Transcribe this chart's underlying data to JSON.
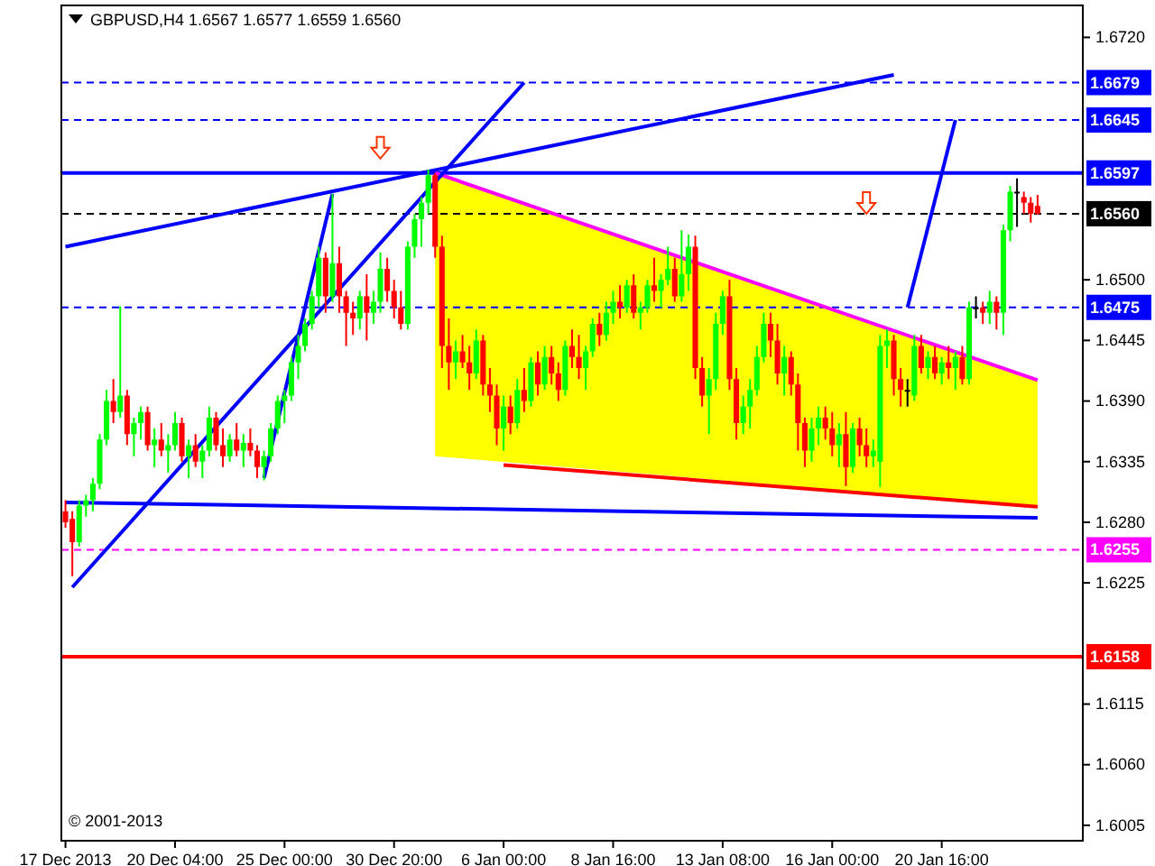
{
  "chart_data": {
    "type": "candlestick",
    "title": "GBPUSD,H4  1.6567 1.6577 1.6559 1.6560",
    "categories": [
      "17 Dec 2013",
      null,
      null,
      null,
      null,
      null,
      null,
      null,
      null,
      null,
      null,
      null,
      null,
      null,
      null,
      null,
      "20 Dec 04:00",
      null,
      null,
      null,
      null,
      null,
      null,
      null,
      null,
      null,
      null,
      null,
      null,
      null,
      null,
      null,
      "25 Dec 00:00",
      null,
      null,
      null,
      null,
      null,
      null,
      null,
      null,
      null,
      null,
      null,
      null,
      null,
      null,
      null,
      "30 Dec 20:00",
      null,
      null,
      null,
      null,
      null,
      null,
      null,
      null,
      null,
      null,
      null,
      null,
      null,
      null,
      null,
      "6 Jan 00:00",
      null,
      null,
      null,
      null,
      null,
      null,
      null,
      null,
      null,
      null,
      null,
      null,
      null,
      null,
      null,
      "8 Jan 16:00",
      null,
      null,
      null,
      null,
      null,
      null,
      null,
      null,
      null,
      null,
      null,
      null,
      null,
      null,
      null,
      "13 Jan 08:00",
      null,
      null,
      null,
      null,
      null,
      null,
      null,
      null,
      null,
      null,
      null,
      null,
      null,
      null,
      null,
      "16 Jan 00:00",
      null,
      null,
      null,
      null,
      null,
      null,
      null,
      null,
      null,
      null,
      null,
      null,
      null,
      null,
      null,
      "20 Jan 16:00",
      null,
      null,
      null,
      null,
      null,
      null,
      null,
      null,
      null,
      null,
      null,
      null,
      null,
      null
    ],
    "ohlc": [
      [
        1.629,
        1.63,
        1.6275,
        1.628
      ],
      [
        1.6283,
        1.629,
        1.6231,
        1.6262
      ],
      [
        1.6262,
        1.63,
        1.6258,
        1.6295
      ],
      [
        1.6295,
        1.6305,
        1.6285,
        1.63
      ],
      [
        1.63,
        1.632,
        1.629,
        1.6315
      ],
      [
        1.6315,
        1.636,
        1.631,
        1.6355
      ],
      [
        1.6355,
        1.64,
        1.635,
        1.639
      ],
      [
        1.639,
        1.641,
        1.637,
        1.638
      ],
      [
        1.638,
        1.6476,
        1.6375,
        1.6395
      ],
      [
        1.6395,
        1.64,
        1.635,
        1.636
      ],
      [
        1.636,
        1.6375,
        1.634,
        1.637
      ],
      [
        1.637,
        1.6385,
        1.6355,
        1.638
      ],
      [
        1.638,
        1.6385,
        1.6345,
        1.635
      ],
      [
        1.635,
        1.6365,
        1.633,
        1.6355
      ],
      [
        1.6355,
        1.637,
        1.634,
        1.6345
      ],
      [
        1.6345,
        1.636,
        1.6325,
        1.635
      ],
      [
        1.635,
        1.638,
        1.6345,
        1.637
      ],
      [
        1.637,
        1.6375,
        1.6335,
        1.634
      ],
      [
        1.634,
        1.6355,
        1.632,
        1.635
      ],
      [
        1.635,
        1.636,
        1.633,
        1.6335
      ],
      [
        1.6335,
        1.635,
        1.632,
        1.6345
      ],
      [
        1.6345,
        1.6385,
        1.634,
        1.6375
      ],
      [
        1.6375,
        1.638,
        1.6345,
        1.635
      ],
      [
        1.635,
        1.6365,
        1.633,
        1.634
      ],
      [
        1.634,
        1.636,
        1.6335,
        1.6355
      ],
      [
        1.6355,
        1.637,
        1.634,
        1.6345
      ],
      [
        1.6345,
        1.636,
        1.633,
        1.6352
      ],
      [
        1.6352,
        1.6365,
        1.634,
        1.6345
      ],
      [
        1.6345,
        1.635,
        1.632,
        1.633
      ],
      [
        1.633,
        1.6345,
        1.6318,
        1.634
      ],
      [
        1.634,
        1.637,
        1.6335,
        1.6365
      ],
      [
        1.6365,
        1.6395,
        1.636,
        1.639
      ],
      [
        1.639,
        1.64,
        1.637,
        1.6395
      ],
      [
        1.6395,
        1.643,
        1.639,
        1.6425
      ],
      [
        1.6425,
        1.645,
        1.641,
        1.644
      ],
      [
        1.644,
        1.6465,
        1.6435,
        1.646
      ],
      [
        1.646,
        1.649,
        1.6455,
        1.6485
      ],
      [
        1.6485,
        1.653,
        1.6475,
        1.652
      ],
      [
        1.652,
        1.6525,
        1.647,
        1.6485
      ],
      [
        1.6485,
        1.6578,
        1.648,
        1.6515
      ],
      [
        1.6515,
        1.653,
        1.647,
        1.6485
      ],
      [
        1.6485,
        1.649,
        1.644,
        1.647
      ],
      [
        1.647,
        1.648,
        1.645,
        1.6465
      ],
      [
        1.6465,
        1.649,
        1.6455,
        1.6485
      ],
      [
        1.6485,
        1.6505,
        1.6445,
        1.647
      ],
      [
        1.647,
        1.649,
        1.646,
        1.648
      ],
      [
        1.648,
        1.6525,
        1.647,
        1.651
      ],
      [
        1.651,
        1.652,
        1.648,
        1.649
      ],
      [
        1.649,
        1.65,
        1.6465,
        1.6475
      ],
      [
        1.6475,
        1.649,
        1.6455,
        1.646
      ],
      [
        1.646,
        1.6535,
        1.6455,
        1.653
      ],
      [
        1.653,
        1.656,
        1.652,
        1.6555
      ],
      [
        1.6555,
        1.6575,
        1.653,
        1.657
      ],
      [
        1.657,
        1.66,
        1.656,
        1.6595
      ],
      [
        1.6595,
        1.6597,
        1.652,
        1.653
      ],
      [
        1.653,
        1.654,
        1.642,
        1.644
      ],
      [
        1.644,
        1.6465,
        1.64,
        1.6425
      ],
      [
        1.6425,
        1.6445,
        1.641,
        1.6435
      ],
      [
        1.6435,
        1.645,
        1.642,
        1.6425
      ],
      [
        1.6425,
        1.644,
        1.64,
        1.6415
      ],
      [
        1.6415,
        1.6455,
        1.641,
        1.6445
      ],
      [
        1.6445,
        1.645,
        1.6395,
        1.6405
      ],
      [
        1.6405,
        1.642,
        1.638,
        1.6395
      ],
      [
        1.6395,
        1.6405,
        1.635,
        1.6365
      ],
      [
        1.6365,
        1.6395,
        1.6345,
        1.6385
      ],
      [
        1.6385,
        1.6395,
        1.636,
        1.637
      ],
      [
        1.637,
        1.641,
        1.6365,
        1.64
      ],
      [
        1.64,
        1.642,
        1.638,
        1.639
      ],
      [
        1.639,
        1.643,
        1.6385,
        1.6425
      ],
      [
        1.6425,
        1.6435,
        1.6395,
        1.6405
      ],
      [
        1.6405,
        1.644,
        1.64,
        1.643
      ],
      [
        1.643,
        1.644,
        1.6405,
        1.6415
      ],
      [
        1.6415,
        1.6425,
        1.639,
        1.64
      ],
      [
        1.64,
        1.6445,
        1.6395,
        1.644
      ],
      [
        1.644,
        1.6455,
        1.642,
        1.643
      ],
      [
        1.643,
        1.645,
        1.641,
        1.642
      ],
      [
        1.642,
        1.644,
        1.64,
        1.6435
      ],
      [
        1.6435,
        1.6465,
        1.643,
        1.646
      ],
      [
        1.646,
        1.647,
        1.644,
        1.645
      ],
      [
        1.645,
        1.648,
        1.6445,
        1.647
      ],
      [
        1.647,
        1.649,
        1.646,
        1.648
      ],
      [
        1.648,
        1.6495,
        1.6465,
        1.6475
      ],
      [
        1.6475,
        1.65,
        1.647,
        1.6495
      ],
      [
        1.6495,
        1.6505,
        1.6465,
        1.647
      ],
      [
        1.647,
        1.648,
        1.6455,
        1.6475
      ],
      [
        1.6475,
        1.65,
        1.647,
        1.6495
      ],
      [
        1.6495,
        1.652,
        1.648,
        1.649
      ],
      [
        1.649,
        1.6505,
        1.6475,
        1.65
      ],
      [
        1.65,
        1.653,
        1.6495,
        1.651
      ],
      [
        1.651,
        1.652,
        1.648,
        1.6485
      ],
      [
        1.6485,
        1.6545,
        1.648,
        1.6505
      ],
      [
        1.6505,
        1.6541,
        1.649,
        1.653
      ],
      [
        1.653,
        1.654,
        1.641,
        1.642
      ],
      [
        1.642,
        1.643,
        1.6385,
        1.6395
      ],
      [
        1.6395,
        1.642,
        1.636,
        1.641
      ],
      [
        1.641,
        1.647,
        1.64,
        1.646
      ],
      [
        1.646,
        1.649,
        1.645,
        1.6485
      ],
      [
        1.6485,
        1.65,
        1.64,
        1.641
      ],
      [
        1.641,
        1.642,
        1.6355,
        1.637
      ],
      [
        1.637,
        1.6395,
        1.636,
        1.6385
      ],
      [
        1.6385,
        1.641,
        1.6365,
        1.64
      ],
      [
        1.64,
        1.644,
        1.6395,
        1.643
      ],
      [
        1.643,
        1.647,
        1.6425,
        1.646
      ],
      [
        1.646,
        1.647,
        1.643,
        1.6445
      ],
      [
        1.6445,
        1.646,
        1.6405,
        1.6415
      ],
      [
        1.6415,
        1.644,
        1.6395,
        1.643
      ],
      [
        1.643,
        1.6435,
        1.6395,
        1.6405
      ],
      [
        1.6405,
        1.6415,
        1.6345,
        1.637
      ],
      [
        1.637,
        1.6375,
        1.633,
        1.6345
      ],
      [
        1.6345,
        1.6375,
        1.6335,
        1.6365
      ],
      [
        1.6365,
        1.6385,
        1.635,
        1.6375
      ],
      [
        1.6375,
        1.6385,
        1.6355,
        1.6365
      ],
      [
        1.6365,
        1.638,
        1.634,
        1.635
      ],
      [
        1.635,
        1.637,
        1.633,
        1.636
      ],
      [
        1.636,
        1.638,
        1.6313,
        1.633
      ],
      [
        1.633,
        1.637,
        1.6325,
        1.6365
      ],
      [
        1.6365,
        1.6375,
        1.634,
        1.635
      ],
      [
        1.635,
        1.6365,
        1.633,
        1.634
      ],
      [
        1.634,
        1.6355,
        1.633,
        1.6345
      ],
      [
        1.6335,
        1.645,
        1.6312,
        1.644
      ],
      [
        1.644,
        1.6455,
        1.642,
        1.6445
      ],
      [
        1.6445,
        1.645,
        1.6395,
        1.641
      ],
      [
        1.641,
        1.642,
        1.6385,
        1.64
      ],
      [
        1.64,
        1.641,
        1.6385,
        1.64
      ],
      [
        1.6395,
        1.645,
        1.639,
        1.644
      ],
      [
        1.644,
        1.645,
        1.6415,
        1.642
      ],
      [
        1.642,
        1.6435,
        1.641,
        1.643
      ],
      [
        1.643,
        1.644,
        1.641,
        1.6415
      ],
      [
        1.6415,
        1.643,
        1.6405,
        1.6425
      ],
      [
        1.6425,
        1.644,
        1.641,
        1.642
      ],
      [
        1.642,
        1.6435,
        1.64,
        1.643
      ],
      [
        1.643,
        1.644,
        1.6405,
        1.641
      ],
      [
        1.641,
        1.648,
        1.6405,
        1.6475
      ],
      [
        1.6475,
        1.6485,
        1.6465,
        1.6475
      ],
      [
        1.6475,
        1.648,
        1.646,
        1.647
      ],
      [
        1.647,
        1.649,
        1.646,
        1.648
      ],
      [
        1.648,
        1.6485,
        1.6455,
        1.647
      ],
      [
        1.647,
        1.655,
        1.645,
        1.6545
      ],
      [
        1.6545,
        1.6585,
        1.6535,
        1.658
      ],
      [
        1.658,
        1.6592,
        1.6548,
        1.658
      ],
      [
        1.6575,
        1.658,
        1.656,
        1.657
      ],
      [
        1.657,
        1.6575,
        1.6552,
        1.656
      ],
      [
        1.6567,
        1.6577,
        1.6559,
        1.656
      ]
    ],
    "colors": [
      "#ff0000",
      "#ff0000",
      "#00ff00",
      "#00ff00",
      "#00ff00",
      "#00ff00",
      "#00ff00",
      "#ff0000",
      "#00ff00",
      "#ff0000",
      "#00ff00",
      "#00ff00",
      "#ff0000",
      "#00ff00",
      "#ff0000",
      "#00ff00",
      "#00ff00",
      "#ff0000",
      "#00ff00",
      "#ff0000",
      "#00ff00",
      "#00ff00",
      "#ff0000",
      "#ff0000",
      "#00ff00",
      "#ff0000",
      "#00ff00",
      "#ff0000",
      "#ff0000",
      "#00ff00",
      "#00ff00",
      "#00ff00",
      "#00ff00",
      "#00ff00",
      "#00ff00",
      "#00ff00",
      "#00ff00",
      "#00ff00",
      "#ff0000",
      "#00ff00",
      "#ff0000",
      "#ff0000",
      "#ff0000",
      "#00ff00",
      "#ff0000",
      "#00ff00",
      "#00ff00",
      "#ff0000",
      "#ff0000",
      "#ff0000",
      "#00ff00",
      "#00ff00",
      "#00ff00",
      "#00ff00",
      "#ff0000",
      "#ff0000",
      "#ff0000",
      "#00ff00",
      "#ff0000",
      "#ff0000",
      "#00ff00",
      "#ff0000",
      "#ff0000",
      "#ff0000",
      "#00ff00",
      "#ff0000",
      "#00ff00",
      "#ff0000",
      "#00ff00",
      "#ff0000",
      "#00ff00",
      "#ff0000",
      "#ff0000",
      "#00ff00",
      "#ff0000",
      "#ff0000",
      "#00ff00",
      "#00ff00",
      "#ff0000",
      "#00ff00",
      "#00ff00",
      "#ff0000",
      "#00ff00",
      "#ff0000",
      "#00ff00",
      "#00ff00",
      "#ff0000",
      "#00ff00",
      "#00ff00",
      "#ff0000",
      "#00ff00",
      "#00ff00",
      "#ff0000",
      "#ff0000",
      "#00ff00",
      "#00ff00",
      "#00ff00",
      "#ff0000",
      "#ff0000",
      "#00ff00",
      "#00ff00",
      "#00ff00",
      "#00ff00",
      "#ff0000",
      "#ff0000",
      "#00ff00",
      "#ff0000",
      "#ff0000",
      "#ff0000",
      "#00ff00",
      "#00ff00",
      "#ff0000",
      "#ff0000",
      "#00ff00",
      "#ff0000",
      "#00ff00",
      "#ff0000",
      "#ff0000",
      "#00ff00",
      "#00ff00",
      "#00ff00",
      "#ff0000",
      "#ff0000",
      "#000000",
      "#00ff00",
      "#ff0000",
      "#00ff00",
      "#ff0000",
      "#00ff00",
      "#ff0000",
      "#00ff00",
      "#ff0000",
      "#00ff00",
      "#000000",
      "#ff0000",
      "#00ff00",
      "#ff0000",
      "#00ff00",
      "#00ff00",
      "#000000",
      "#ff0000",
      "#ff0000",
      "#ff0000"
    ],
    "series": [
      {
        "type": "line",
        "color": "#ff00ff",
        "upper": [
          null,
          null,
          null,
          null,
          null,
          null,
          null,
          null,
          null,
          null,
          null,
          null,
          null,
          null,
          null,
          null,
          null,
          null,
          null,
          null,
          null,
          null,
          null,
          null,
          null,
          null,
          null,
          null,
          null,
          null,
          null,
          null,
          null,
          null,
          null,
          null,
          null,
          null,
          null,
          null,
          null,
          null,
          null,
          null,
          null,
          null,
          null,
          null,
          null,
          null,
          null,
          null,
          null,
          null,
          1.6597,
          null,
          null,
          null,
          null,
          null,
          null,
          null,
          null,
          null,
          null,
          null,
          null,
          null,
          null,
          null,
          null,
          null,
          null,
          null,
          null,
          null,
          null,
          null,
          null,
          null,
          null,
          null,
          null,
          null,
          null,
          null,
          null,
          null,
          null,
          null,
          null,
          null,
          null,
          null,
          null,
          null,
          null,
          null,
          null,
          null,
          null,
          null,
          null,
          null,
          null,
          null,
          null,
          null,
          null,
          null,
          null,
          null,
          null,
          null,
          null,
          null,
          null,
          null,
          null,
          null,
          null,
          null,
          null,
          null,
          null,
          null,
          null,
          null,
          null,
          null,
          null,
          null,
          null,
          null,
          null,
          null,
          null,
          null,
          null,
          null,
          null,
          null,
          1.6409
        ],
        "lower": [
          null,
          null,
          null,
          null,
          null,
          null,
          null,
          null,
          null,
          null,
          null,
          null,
          null,
          null,
          null,
          null,
          null,
          null,
          null,
          null,
          null,
          null,
          null,
          null,
          null,
          null,
          null,
          null,
          null,
          null,
          null,
          null,
          null,
          null,
          null,
          null,
          null,
          null,
          null,
          null,
          null,
          null,
          null,
          null,
          null,
          null,
          null,
          null,
          null,
          null,
          null,
          null,
          null,
          null,
          1.634,
          null,
          null,
          null,
          null,
          null,
          null,
          null,
          null,
          null,
          null,
          null,
          null,
          null,
          null,
          null,
          null,
          null,
          null,
          null,
          null,
          null,
          null,
          null,
          null,
          null,
          null,
          null,
          null,
          null,
          null,
          null,
          null,
          null,
          null,
          null,
          null,
          null,
          null,
          null,
          null,
          null,
          null,
          null,
          null,
          null,
          null,
          null,
          null,
          null,
          null,
          null,
          null,
          null,
          null,
          null,
          null,
          null,
          null,
          null,
          null,
          null,
          null,
          null,
          null,
          null,
          null,
          null,
          null,
          null,
          null,
          null,
          null,
          null,
          null,
          null,
          null,
          null,
          null,
          null,
          null,
          null,
          null,
          null,
          null,
          null,
          null,
          null,
          1.6294
        ],
        "values": [
          null,
          null,
          null,
          null,
          null,
          null,
          null,
          null,
          null,
          null,
          null,
          null,
          null,
          null,
          null,
          null,
          null,
          null,
          null,
          null,
          null,
          null,
          null,
          null,
          null,
          null,
          null,
          null,
          null,
          null,
          null,
          null,
          null,
          null,
          null,
          null,
          null,
          null,
          null,
          null,
          null,
          null,
          null,
          null,
          null,
          null,
          null,
          null,
          null,
          null,
          null,
          null,
          null,
          null,
          1.6597,
          null,
          null,
          null,
          null,
          null,
          null,
          null,
          null,
          null,
          null,
          null,
          null,
          null,
          null,
          null,
          null,
          null,
          null,
          null,
          null,
          null,
          null,
          null,
          null,
          null,
          null,
          null,
          null,
          null,
          null,
          null,
          null,
          null,
          null,
          null,
          null,
          null,
          null,
          null,
          null,
          null,
          null,
          null,
          null,
          null,
          null,
          null,
          null,
          null,
          null,
          null,
          null,
          null,
          null,
          null,
          null,
          null,
          null,
          null,
          null,
          null,
          null,
          null,
          null,
          null,
          null,
          null,
          null,
          null,
          null,
          null,
          null,
          null,
          null,
          null,
          null,
          null,
          null,
          null,
          null,
          null,
          null,
          null,
          null,
          null,
          null,
          null,
          1.6409
        ]
      },
      {
        "type": "line",
        "color": "#ff0000",
        "values": [
          null,
          null,
          null,
          null,
          null,
          null,
          null,
          null,
          null,
          null,
          null,
          null,
          null,
          null,
          null,
          null,
          null,
          null,
          null,
          null,
          null,
          null,
          null,
          null,
          null,
          null,
          null,
          null,
          null,
          null,
          null,
          null,
          null,
          null,
          null,
          null,
          null,
          null,
          null,
          null,
          null,
          null,
          null,
          null,
          null,
          null,
          null,
          null,
          null,
          null,
          null,
          null,
          null,
          null,
          null,
          null,
          null,
          null,
          null,
          null,
          null,
          null,
          null,
          null,
          1.6332,
          null,
          null,
          null,
          null,
          null,
          null,
          null,
          null,
          null,
          null,
          null,
          null,
          null,
          null,
          null,
          null,
          null,
          null,
          null,
          null,
          null,
          null,
          null,
          null,
          null,
          null,
          null,
          null,
          null,
          null,
          null,
          null,
          null,
          null,
          null,
          null,
          null,
          null,
          null,
          null,
          null,
          null,
          null,
          null,
          null,
          null,
          null,
          null,
          null,
          null,
          null,
          null,
          null,
          null,
          null,
          null,
          null,
          null,
          null,
          null,
          null,
          null,
          null,
          null,
          null,
          null,
          null,
          null,
          null,
          null,
          null,
          null,
          null,
          null,
          null,
          null,
          null,
          1.6294
        ]
      },
      {
        "type": "line",
        "color": "#0000ff",
        "values": [
          null,
          1.6221,
          null,
          null,
          null,
          null,
          null,
          null,
          null,
          null,
          null,
          null,
          null,
          null,
          null,
          null,
          null,
          null,
          null,
          null,
          null,
          null,
          null,
          null,
          null,
          null,
          null,
          null,
          null,
          null,
          null,
          null,
          null,
          null,
          null,
          null,
          null,
          null,
          null,
          null,
          null,
          null,
          null,
          null,
          null,
          null,
          null,
          null,
          null,
          null,
          null,
          null,
          null,
          null,
          null,
          null,
          null,
          null,
          null,
          null,
          null,
          null,
          null,
          null,
          null,
          null,
          null,
          1.6679,
          null,
          null,
          null,
          null,
          null,
          null,
          null,
          null,
          null,
          null,
          null,
          null,
          null,
          null,
          null,
          null,
          null,
          null,
          null,
          null,
          null,
          null,
          null,
          null,
          null,
          null,
          null,
          null,
          null,
          null,
          null,
          null,
          null,
          null,
          null,
          null,
          null,
          null,
          null,
          null,
          null,
          null,
          null,
          null,
          null,
          null,
          null,
          null,
          null,
          null,
          null,
          null,
          null,
          null,
          null,
          null,
          null,
          null,
          null,
          null,
          null,
          null,
          null,
          null,
          null,
          null,
          null,
          null,
          null,
          null,
          null,
          null,
          null,
          null,
          null
        ]
      },
      {
        "type": "line",
        "color": "#0000ff",
        "values": [
          null,
          null,
          null,
          null,
          null,
          null,
          null,
          null,
          null,
          null,
          null,
          null,
          null,
          null,
          null,
          null,
          null,
          null,
          null,
          null,
          null,
          null,
          null,
          null,
          null,
          null,
          null,
          null,
          null,
          1.632,
          null,
          null,
          null,
          null,
          null,
          null,
          null,
          null,
          null,
          1.6578,
          null,
          null,
          null,
          null,
          null,
          null,
          null,
          null,
          null,
          null,
          null,
          null,
          null,
          null,
          null,
          null,
          null,
          null,
          null,
          null,
          null,
          null,
          null,
          null,
          null,
          null,
          null,
          null,
          null,
          null,
          null,
          null,
          null,
          null,
          null,
          null,
          null,
          null,
          null,
          null,
          null,
          null,
          null,
          null,
          null,
          null,
          null,
          null,
          null,
          null,
          null,
          null,
          null,
          null,
          null,
          null,
          null,
          null,
          null,
          null,
          null,
          null,
          null,
          null,
          null,
          null,
          null,
          null,
          null,
          null,
          null,
          null,
          null,
          null,
          null,
          null,
          null,
          null,
          null,
          null,
          null,
          null,
          null,
          null,
          null,
          null,
          null,
          null,
          null,
          null,
          null,
          null,
          null,
          null,
          null,
          null,
          null,
          null,
          null,
          null,
          null,
          null,
          null
        ]
      },
      {
        "type": "line",
        "color": "#0000ff",
        "values": [
          1.653,
          null,
          null,
          null,
          null,
          null,
          null,
          null,
          null,
          null,
          null,
          null,
          null,
          null,
          null,
          null,
          null,
          null,
          null,
          null,
          null,
          null,
          null,
          null,
          null,
          null,
          null,
          null,
          null,
          null,
          null,
          null,
          null,
          null,
          null,
          null,
          null,
          null,
          null,
          null,
          null,
          null,
          null,
          null,
          null,
          null,
          null,
          null,
          null,
          null,
          null,
          null,
          null,
          null,
          null,
          null,
          null,
          null,
          null,
          null,
          null,
          null,
          null,
          null,
          null,
          null,
          null,
          null,
          null,
          null,
          null,
          null,
          null,
          null,
          null,
          null,
          null,
          null,
          null,
          null,
          null,
          null,
          null,
          null,
          null,
          null,
          null,
          null,
          null,
          null,
          null,
          null,
          null,
          null,
          null,
          null,
          null,
          null,
          null,
          null,
          null,
          null,
          null,
          null,
          null,
          null,
          null,
          null,
          null,
          null,
          null,
          null,
          null,
          null,
          null,
          null,
          null,
          null,
          null,
          null,
          null,
          1.6686,
          null,
          null,
          null,
          null,
          null,
          null,
          null,
          null,
          null,
          null,
          null,
          null,
          null,
          null,
          null,
          null,
          null,
          null,
          null,
          null,
          null
        ]
      },
      {
        "type": "line",
        "color": "#0000ff",
        "values": [
          1.6298,
          null,
          null,
          null,
          null,
          null,
          null,
          null,
          null,
          null,
          null,
          null,
          null,
          null,
          null,
          null,
          null,
          null,
          null,
          null,
          null,
          null,
          null,
          null,
          null,
          null,
          null,
          null,
          null,
          null,
          null,
          null,
          null,
          null,
          null,
          null,
          null,
          null,
          null,
          null,
          null,
          null,
          null,
          null,
          null,
          null,
          null,
          null,
          null,
          null,
          null,
          null,
          null,
          null,
          null,
          null,
          null,
          null,
          null,
          null,
          null,
          null,
          null,
          null,
          null,
          null,
          null,
          null,
          null,
          null,
          null,
          null,
          null,
          null,
          null,
          null,
          null,
          null,
          null,
          null,
          null,
          null,
          null,
          null,
          null,
          null,
          null,
          null,
          null,
          null,
          null,
          null,
          null,
          null,
          null,
          null,
          null,
          null,
          null,
          null,
          null,
          null,
          null,
          null,
          null,
          null,
          null,
          null,
          null,
          null,
          null,
          null,
          null,
          null,
          null,
          null,
          null,
          null,
          null,
          null,
          null,
          null,
          null,
          null,
          null,
          null,
          null,
          null,
          null,
          null,
          null,
          null,
          null,
          null,
          null,
          null,
          null,
          null,
          null,
          null,
          null,
          null,
          1.6284
        ]
      },
      {
        "type": "line",
        "color": "#0000ff",
        "values": [
          null,
          null,
          null,
          null,
          null,
          null,
          null,
          null,
          null,
          null,
          null,
          null,
          null,
          null,
          null,
          null,
          null,
          null,
          null,
          null,
          null,
          null,
          null,
          null,
          null,
          null,
          null,
          null,
          null,
          null,
          null,
          null,
          null,
          null,
          null,
          null,
          null,
          null,
          null,
          null,
          null,
          null,
          null,
          null,
          null,
          null,
          null,
          null,
          null,
          null,
          null,
          null,
          null,
          null,
          null,
          null,
          null,
          null,
          null,
          null,
          null,
          null,
          null,
          null,
          null,
          null,
          null,
          null,
          null,
          null,
          null,
          null,
          null,
          null,
          null,
          null,
          null,
          null,
          null,
          null,
          null,
          null,
          null,
          null,
          null,
          null,
          null,
          null,
          null,
          null,
          null,
          null,
          null,
          null,
          null,
          null,
          null,
          null,
          null,
          null,
          null,
          null,
          null,
          null,
          null,
          null,
          null,
          null,
          null,
          null,
          null,
          null,
          null,
          null,
          null,
          null,
          null,
          null,
          null,
          null,
          null,
          null,
          null,
          1.6475,
          null,
          null,
          null,
          null,
          null,
          null,
          1.6645,
          null,
          null,
          null,
          null,
          null,
          null,
          null,
          null,
          null,
          null,
          null,
          null
        ]
      }
    ],
    "ylim": [
      1.5991,
      1.6749
    ],
    "yticks": [
      {
        "value": 1.6005,
        "label": "1.6005"
      },
      {
        "value": 1.606,
        "label": "1.6060"
      },
      {
        "value": 1.6115,
        "label": "1.6115"
      },
      {
        "value": 1.6225,
        "label": "1.6225"
      },
      {
        "value": 1.628,
        "label": "1.6280"
      },
      {
        "value": 1.6335,
        "label": "1.6335"
      },
      {
        "value": 1.639,
        "label": "1.6390"
      },
      {
        "value": 1.6445,
        "label": "1.6445"
      },
      {
        "value": 1.65,
        "label": "1.6500"
      },
      {
        "value": 1.672,
        "label": "1.6720"
      }
    ],
    "ref_lines": [
      {
        "axis": "y",
        "value": 1.6679,
        "label": "1.6679",
        "color": "#0000ff",
        "line_style": "dashed"
      },
      {
        "axis": "y",
        "value": 1.6645,
        "label": "1.6645",
        "color": "#0000ff",
        "line_style": "dashed"
      },
      {
        "axis": "y",
        "value": 1.6597,
        "label": "1.6597",
        "color": "#0000ff",
        "line_style": "solid"
      },
      {
        "axis": "y",
        "value": 1.656,
        "label": "1.6560",
        "color": "#000000",
        "line_style": "dashed"
      },
      {
        "axis": "y",
        "value": 1.6475,
        "label": "1.6475",
        "color": "#0000ff",
        "line_style": "dashed"
      },
      {
        "axis": "y",
        "value": 1.6255,
        "label": "1.6255",
        "color": "#ff00ff",
        "line_style": "dashed"
      },
      {
        "axis": "y",
        "value": 1.6158,
        "label": "1.6158",
        "color": "#ff0000",
        "line_style": "solid"
      }
    ],
    "annotations": [
      "© 2001-2013"
    ],
    "grid": false
  }
}
